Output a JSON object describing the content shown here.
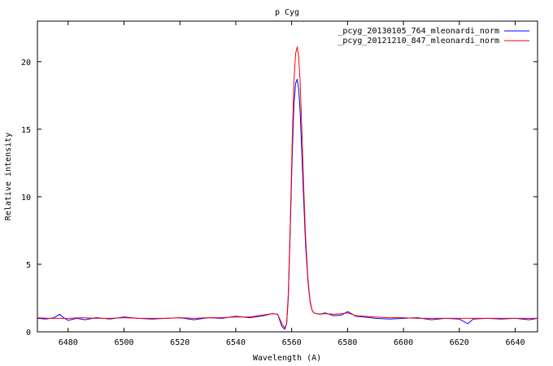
{
  "chart_data": {
    "type": "line",
    "title": "p Cyg",
    "xlabel": "Wavelength (A)",
    "ylabel": "Relative intensity",
    "xlim": [
      6469,
      6648
    ],
    "ylim": [
      0,
      23
    ],
    "xticks": [
      6480,
      6500,
      6520,
      6540,
      6560,
      6580,
      6600,
      6620,
      6640
    ],
    "yticks": [
      0,
      5,
      10,
      15,
      20
    ],
    "grid": false,
    "legend_position": "top-right",
    "series": [
      {
        "name": "_pcyg_20130105_764_mleonardi_norm",
        "color": "#0000ff",
        "x": [
          6469,
          6472,
          6475,
          6477,
          6478,
          6480,
          6483,
          6486,
          6490,
          6495,
          6500,
          6505,
          6510,
          6515,
          6520,
          6525,
          6530,
          6535,
          6540,
          6545,
          6550,
          6553,
          6555,
          6556.5,
          6557.5,
          6558.2,
          6558.8,
          6559.5,
          6560.2,
          6560.8,
          6561.4,
          6562,
          6562.5,
          6563,
          6563.6,
          6564.3,
          6565,
          6565.8,
          6566.6,
          6567.3,
          6568,
          6569,
          6570,
          6572,
          6575,
          6578,
          6580,
          6583,
          6586,
          6590,
          6595,
          6600,
          6605,
          6610,
          6615,
          6620,
          6623,
          6625,
          6630,
          6635,
          6640,
          6645,
          6648
        ],
        "y": [
          1.0,
          0.95,
          1.05,
          1.3,
          1.1,
          0.85,
          1.0,
          0.9,
          1.05,
          0.95,
          1.1,
          1.0,
          0.95,
          1.0,
          1.05,
          0.9,
          1.05,
          1.0,
          1.15,
          1.05,
          1.2,
          1.35,
          1.3,
          0.4,
          0.2,
          0.6,
          2.5,
          7.5,
          13.0,
          16.8,
          18.4,
          18.7,
          18.0,
          16.4,
          13.5,
          9.8,
          6.4,
          3.8,
          2.2,
          1.6,
          1.4,
          1.35,
          1.3,
          1.4,
          1.2,
          1.25,
          1.5,
          1.15,
          1.1,
          1.0,
          0.95,
          1.0,
          1.05,
          0.9,
          1.0,
          0.95,
          0.6,
          0.95,
          1.0,
          0.95,
          1.0,
          0.9,
          1.0
        ]
      },
      {
        "name": "_pcyg_20121210_847_mleonardi_norm",
        "color": "#ff0000",
        "x": [
          6469,
          6473,
          6477,
          6480,
          6485,
          6490,
          6495,
          6500,
          6505,
          6510,
          6515,
          6520,
          6525,
          6530,
          6535,
          6540,
          6545,
          6550,
          6553,
          6555,
          6556.5,
          6557.5,
          6558.2,
          6558.8,
          6559.5,
          6560.2,
          6560.8,
          6561.4,
          6562,
          6562.5,
          6563,
          6563.6,
          6564.3,
          6565,
          6565.8,
          6566.6,
          6567.3,
          6568,
          6569,
          6570,
          6572,
          6575,
          6578,
          6580,
          6583,
          6586,
          6590,
          6595,
          6600,
          6605,
          6610,
          6615,
          6620,
          6625,
          6630,
          6635,
          6640,
          6645,
          6648
        ],
        "y": [
          1.05,
          1.0,
          1.0,
          1.0,
          1.05,
          1.0,
          1.0,
          1.05,
          1.0,
          1.0,
          1.0,
          1.05,
          1.0,
          1.05,
          1.05,
          1.1,
          1.1,
          1.25,
          1.35,
          1.3,
          0.6,
          0.3,
          0.6,
          2.8,
          8.0,
          14.0,
          18.5,
          20.6,
          21.1,
          20.4,
          18.6,
          15.2,
          10.8,
          7.0,
          4.0,
          2.3,
          1.6,
          1.4,
          1.35,
          1.3,
          1.35,
          1.3,
          1.35,
          1.4,
          1.2,
          1.15,
          1.1,
          1.05,
          1.05,
          1.0,
          1.0,
          1.0,
          1.0,
          1.0,
          1.0,
          1.0,
          1.0,
          1.0,
          1.0
        ]
      }
    ]
  }
}
